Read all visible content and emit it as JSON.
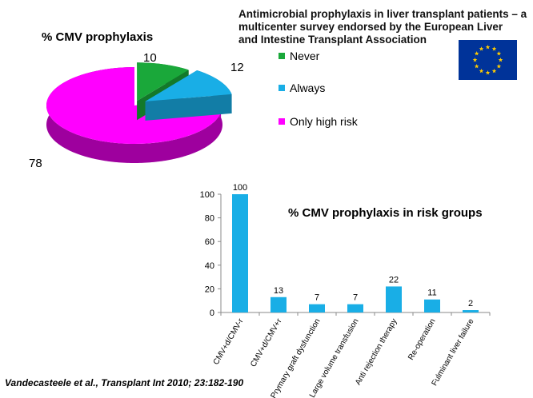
{
  "header": {
    "lines": [
      "Antimicrobial prophylaxis in liver transplant patients – a",
      "multicenter survey endorsed by the European Liver",
      "and Intestine Transplant Association"
    ]
  },
  "citation": "Vandecasteele et al., Transplant Int 2010; 23:182-190",
  "flag": {
    "name": "eu-flag",
    "blue": "#003399",
    "star": "#FFCC00"
  },
  "chart_data": [
    {
      "type": "pie",
      "title": "% CMV prophylaxis",
      "categories": [
        "Never",
        "Always",
        "Only high risk"
      ],
      "values": [
        10,
        12,
        78
      ],
      "data_labels": [
        "10",
        "12",
        "78"
      ],
      "colors": [
        "#1aa83a",
        "#19aee6",
        "#ff00ff"
      ],
      "legend_position": "right"
    },
    {
      "type": "bar",
      "title": "% CMV prophylaxis in risk groups",
      "categories": [
        "CMV+d/CMV-r",
        "CMV+d/CMV+r",
        "Prymary graft dysfunction",
        "Large volume transfusion",
        "Anti rejection therapy",
        "Re-operation",
        "Fulminant liver failure"
      ],
      "values": [
        100,
        13,
        7,
        7,
        22,
        11,
        2
      ],
      "data_labels": [
        "100",
        "13",
        "7",
        "7",
        "22",
        "11",
        "2"
      ],
      "ylim": [
        0,
        100
      ],
      "yticks": [
        "0",
        "20",
        "40",
        "60",
        "80",
        "100"
      ],
      "grid": false,
      "bar_color": "#19aee6"
    }
  ]
}
